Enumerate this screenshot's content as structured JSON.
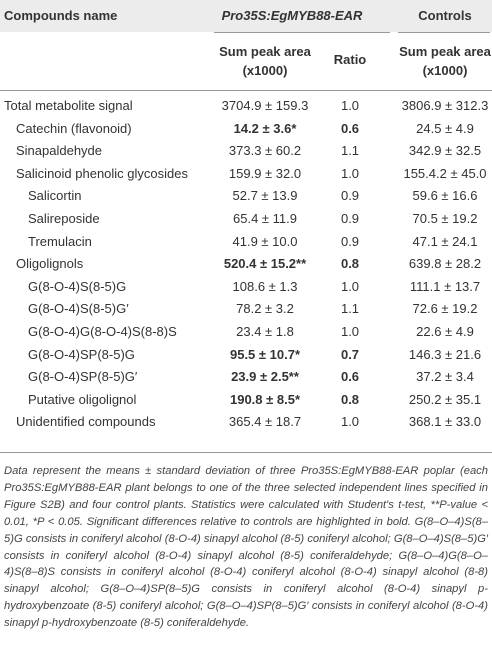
{
  "header": {
    "name": "Compounds name",
    "group": "Pro35S:EgMYB88-EAR",
    "control": "Controls"
  },
  "subheader": [
    "Sum peak area (x1000)",
    "Ratio",
    "Sum peak area (x1000)"
  ],
  "table": {
    "rows": [
      [
        "Total metabolite signal",
        "3704.9 ± 159.3",
        "1.0",
        "3806.9 ± 312.3"
      ],
      [
        "Catechin (flavonoid)",
        "14.2 ± 3.6*",
        "0.6",
        "24.5 ± 4.9"
      ],
      [
        "Sinapaldehyde",
        "373.3 ± 60.2",
        "1.1",
        "342.9 ± 32.5"
      ],
      [
        "Salicinoid phenolic glycosides",
        "159.9 ± 32.0",
        "1.0",
        "155.4.2 ± 45.0"
      ],
      [
        "Salicortin",
        "52.7 ± 13.9",
        "0.9",
        "59.6 ± 16.6"
      ],
      [
        "Salireposide",
        "65.4 ± 11.9",
        "0.9",
        "70.5 ± 19.2"
      ],
      [
        "Tremulacin",
        "41.9 ± 10.0",
        "0.9",
        "47.1 ± 24.1"
      ],
      [
        "Oligolignols",
        "520.4 ± 15.2**",
        "0.8",
        "639.8 ± 28.2"
      ],
      [
        "G(8-O-4)S(8-5)G",
        "108.6 ± 1.3",
        "1.0",
        "111.1 ± 13.7"
      ],
      [
        "G(8-O-4)S(8-5)G′",
        "78.2 ± 3.2",
        "1.1",
        "72.6 ± 19.2"
      ],
      [
        "G(8-O-4)G(8-O-4)S(8-8)S",
        "23.4 ± 1.8",
        "1.0",
        "22.6 ± 4.9"
      ],
      [
        "G(8-O-4)SP(8-5)G",
        "95.5 ± 10.7*",
        "0.7",
        "146.3 ± 21.6"
      ],
      [
        "G(8-O-4)SP(8-5)G′",
        "23.9 ± 2.5**",
        "0.6",
        "37.2 ± 3.4"
      ],
      [
        "Putative oligolignol",
        "190.8 ± 8.5*",
        "0.8",
        "250.2 ± 35.1"
      ],
      [
        "Unidentified compounds",
        "365.4 ± 18.7",
        "1.0",
        "368.1 ± 33.0"
      ]
    ]
  },
  "footnote": "Data represent the means ± standard deviation of three Pro35S:EgMYB88-EAR poplar (each Pro35S:EgMYB88-EAR plant belongs to one of the three selected independent lines specified in Figure S2B) and four control plants. Statistics were calculated with Student's t-test, **P-value < 0.01, *P < 0.05. Significant differences relative to controls are highlighted in bold. G(8–O–4)S(8–5)G consists in coniferyl alcohol (8-O-4) sinapyl alcohol (8-5) coniferyl alcohol; G(8–O–4)S(8–5)G′ consists in coniferyl alcohol (8-O-4) sinapyl alcohol (8-5) coniferaldehyde; G(8–O–4)G(8–O–4)S(8–8)S consists in coniferyl alcohol (8-O-4) coniferyl alcohol (8-O-4) sinapyl alcohol (8-8) sinapyl alcohol; G(8–O–4)SP(8–5)G consists in coniferyl alcohol (8-O-4) sinapyl p-hydroxybenzoate (8-5) coniferyl alcohol; G(8–O–4)SP(8–5)G′ consists in coniferyl alcohol (8-O-4) sinapyl p-hydroxybenzoate (8-5) coniferaldehyde."
}
